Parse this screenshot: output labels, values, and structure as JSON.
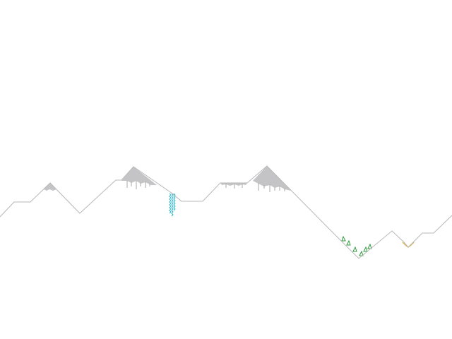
{
  "scene": {
    "background": "#ffffff",
    "line_color": "#b8b8b8",
    "snow_color": "#c4c4c6",
    "icicle_color": "#a8a8aa",
    "waterfall_color": "#2fb2c2",
    "tree_color": "#2e9a3e",
    "tree_count": 6,
    "ore_color": "#e3b24a"
  }
}
